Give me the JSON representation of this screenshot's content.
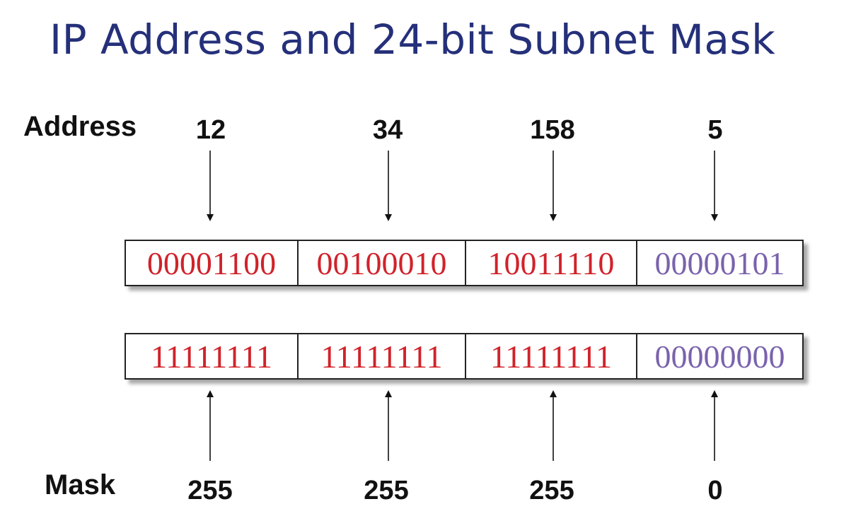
{
  "title": "IP Address and 24-bit Subnet Mask",
  "address": {
    "label": "Address",
    "decimal": [
      "12",
      "34",
      "158",
      "5"
    ],
    "binary": [
      "00001100",
      "00100010",
      "10011110",
      "00000101"
    ]
  },
  "mask": {
    "label": "Mask",
    "decimal": [
      "255",
      "255",
      "255",
      "0"
    ],
    "binary": [
      "11111111",
      "11111111",
      "11111111",
      "00000000"
    ]
  },
  "colors": {
    "title": "#25307a",
    "network_bits": "#d1222a",
    "host_bits": "#7a62ad",
    "labels": "#111111"
  }
}
